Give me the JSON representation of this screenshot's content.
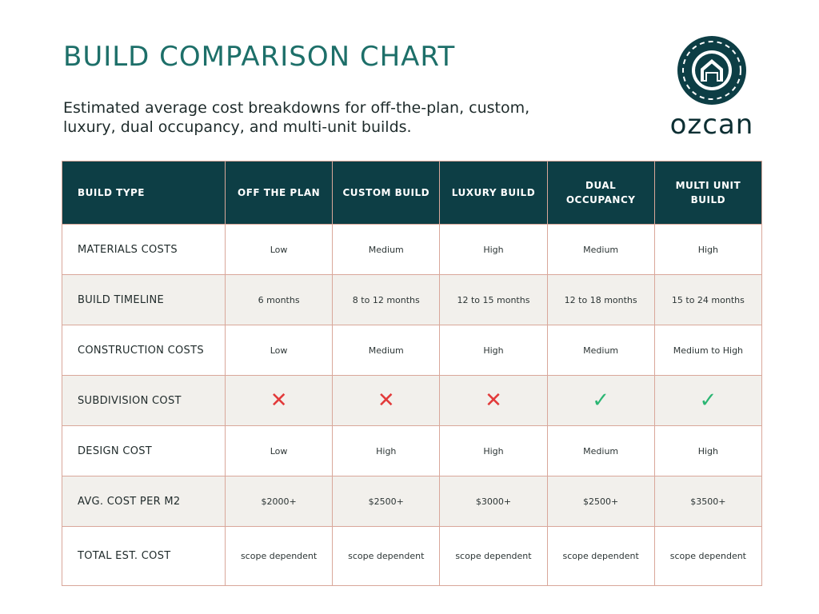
{
  "title": "BUILD COMPARISON CHART",
  "subtitle": "Estimated average cost breakdowns for off-the-plan, custom, luxury, dual occupancy, and multi-unit builds.",
  "logo": {
    "text": "ozcan",
    "icon": "house-in-gear-icon",
    "color": "#0d3e45"
  },
  "colors": {
    "header_bg": "#0d3e45",
    "title": "#1d6f69",
    "border": "#d9a79a",
    "alt_row": "#f2f0ec",
    "cross": "#e23a3a",
    "check": "#2bb673"
  },
  "table": {
    "headers": [
      "BUILD TYPE",
      "OFF THE PLAN",
      "CUSTOM BUILD",
      "LUXURY BUILD",
      "DUAL OCCUPANCY",
      "MULTI UNIT BUILD"
    ],
    "rows": [
      {
        "label": "MATERIALS COSTS",
        "cells": [
          "Low",
          "Medium",
          "High",
          "Medium",
          "High"
        ]
      },
      {
        "label": "BUILD TIMELINE",
        "cells": [
          "6 months",
          "8 to 12 months",
          "12 to 15 months",
          "12 to 18 months",
          "15 to 24 months"
        ]
      },
      {
        "label": "CONSTRUCTION COSTS",
        "cells": [
          "Low",
          "Medium",
          "High",
          "Medium",
          "Medium to High"
        ]
      },
      {
        "label": "SUBDIVISION COST",
        "cells": [
          "✕",
          "✕",
          "✕",
          "✓",
          "✓"
        ],
        "icons": [
          "cross-icon",
          "cross-icon",
          "cross-icon",
          "check-icon",
          "check-icon"
        ]
      },
      {
        "label": "DESIGN COST",
        "cells": [
          "Low",
          "High",
          "High",
          "Medium",
          "High"
        ]
      },
      {
        "label": "AVG. COST PER M2",
        "cells": [
          "$2000+",
          "$2500+",
          "$3000+",
          "$2500+",
          "$3500+"
        ]
      },
      {
        "label": "TOTAL EST. COST",
        "cells": [
          "scope dependent",
          "scope dependent",
          "scope dependent",
          "scope dependent",
          "scope dependent"
        ]
      }
    ]
  }
}
